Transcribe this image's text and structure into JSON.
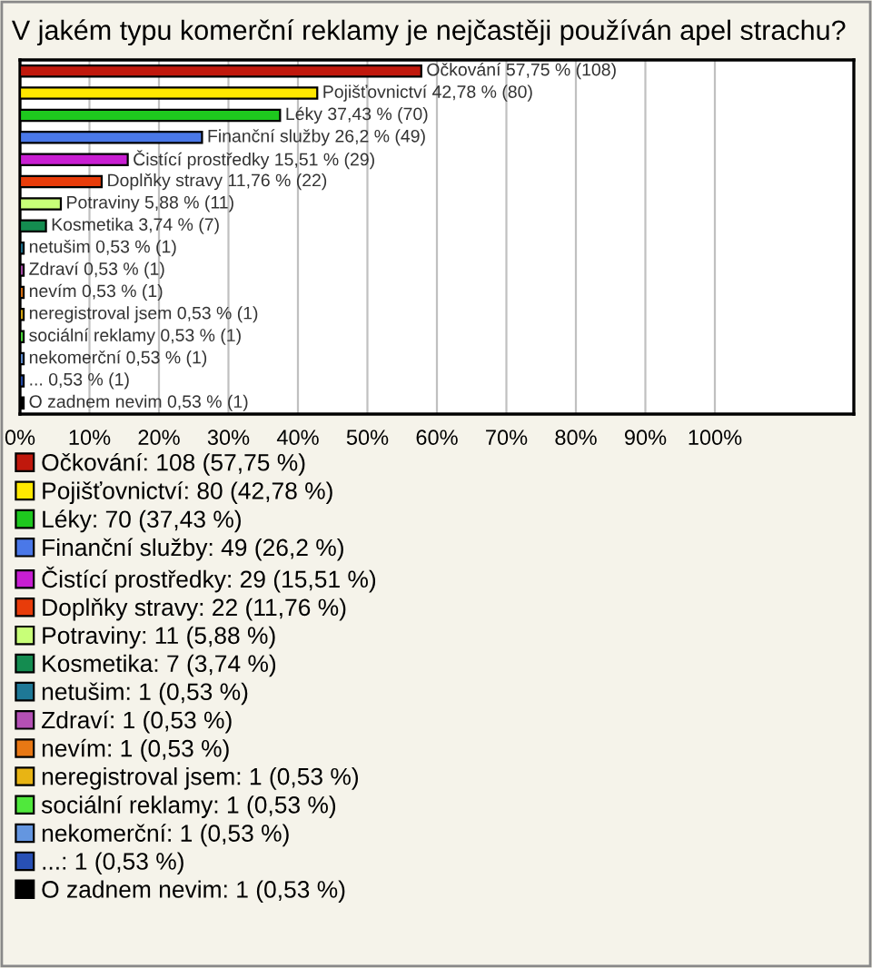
{
  "chart_data": {
    "type": "bar",
    "orientation": "horizontal",
    "title": "V jakém typu komerční reklamy je nejčastěji používán apel strachu?",
    "categories": [
      null,
      null,
      null,
      null,
      null,
      null,
      null,
      null,
      null,
      null,
      null,
      null,
      null,
      null,
      null,
      null
    ],
    "series": [
      {
        "name": "Očkování: 108 (57,75 %)",
        "color": "#c0180c",
        "values": [
          57.75,
          null,
          null,
          null,
          null,
          null,
          null,
          null,
          null,
          null,
          null,
          null,
          null,
          null,
          null,
          null
        ],
        "value_labels": [
          "Očkování 57,75 % (108)",
          null,
          null,
          null,
          null,
          null,
          null,
          null,
          null,
          null,
          null,
          null,
          null,
          null,
          null,
          null
        ]
      },
      {
        "name": "Pojišťovnictví: 80 (42,78 %)",
        "color": "#ffe800",
        "values": [
          null,
          42.78,
          null,
          null,
          null,
          null,
          null,
          null,
          null,
          null,
          null,
          null,
          null,
          null,
          null,
          null
        ],
        "value_labels": [
          null,
          "Pojišťovnictví 42,78 % (80)",
          null,
          null,
          null,
          null,
          null,
          null,
          null,
          null,
          null,
          null,
          null,
          null,
          null,
          null
        ]
      },
      {
        "name": "Léky: 70 (37,43 %)",
        "color": "#1ec81e",
        "values": [
          null,
          null,
          37.43,
          null,
          null,
          null,
          null,
          null,
          null,
          null,
          null,
          null,
          null,
          null,
          null,
          null
        ],
        "value_labels": [
          null,
          null,
          "Léky 37,43 % (70)",
          null,
          null,
          null,
          null,
          null,
          null,
          null,
          null,
          null,
          null,
          null,
          null,
          null
        ]
      },
      {
        "name": "Finanční služby: 49 (26,2 %)",
        "color": "#4a78e8",
        "values": [
          null,
          null,
          null,
          26.2,
          null,
          null,
          null,
          null,
          null,
          null,
          null,
          null,
          null,
          null,
          null,
          null
        ],
        "value_labels": [
          null,
          null,
          null,
          "Finanční služby 26,2 % (49)",
          null,
          null,
          null,
          null,
          null,
          null,
          null,
          null,
          null,
          null,
          null,
          null
        ]
      },
      {
        "name": "Čistící prostředky: 29 (15,51 %)",
        "color": "#c81ed2",
        "values": [
          null,
          null,
          null,
          null,
          15.51,
          null,
          null,
          null,
          null,
          null,
          null,
          null,
          null,
          null,
          null,
          null
        ],
        "value_labels": [
          null,
          null,
          null,
          null,
          "Čistící prostředky 15,51 % (29)",
          null,
          null,
          null,
          null,
          null,
          null,
          null,
          null,
          null,
          null,
          null
        ]
      },
      {
        "name": "Doplňky stravy: 22 (11,76 %)",
        "color": "#e83c0a",
        "values": [
          null,
          null,
          null,
          null,
          null,
          11.76,
          null,
          null,
          null,
          null,
          null,
          null,
          null,
          null,
          null,
          null
        ],
        "value_labels": [
          null,
          null,
          null,
          null,
          null,
          "Doplňky stravy 11,76 % (22)",
          null,
          null,
          null,
          null,
          null,
          null,
          null,
          null,
          null,
          null
        ]
      },
      {
        "name": "Potraviny: 11 (5,88 %)",
        "color": "#c8ff78",
        "values": [
          null,
          null,
          null,
          null,
          null,
          null,
          5.88,
          null,
          null,
          null,
          null,
          null,
          null,
          null,
          null,
          null
        ],
        "value_labels": [
          null,
          null,
          null,
          null,
          null,
          null,
          "Potraviny 5,88 % (11)",
          null,
          null,
          null,
          null,
          null,
          null,
          null,
          null,
          null
        ]
      },
      {
        "name": "Kosmetika: 7 (3,74 %)",
        "color": "#148c50",
        "values": [
          null,
          null,
          null,
          null,
          null,
          null,
          null,
          3.74,
          null,
          null,
          null,
          null,
          null,
          null,
          null,
          null
        ],
        "value_labels": [
          null,
          null,
          null,
          null,
          null,
          null,
          null,
          "Kosmetika 3,74 % (7)",
          null,
          null,
          null,
          null,
          null,
          null,
          null,
          null
        ]
      },
      {
        "name": "netušim: 1 (0,53 %)",
        "color": "#1e7896",
        "values": [
          null,
          null,
          null,
          null,
          null,
          null,
          null,
          null,
          0.53,
          null,
          null,
          null,
          null,
          null,
          null,
          null
        ],
        "value_labels": [
          null,
          null,
          null,
          null,
          null,
          null,
          null,
          null,
          "netušim 0,53 % (1)",
          null,
          null,
          null,
          null,
          null,
          null,
          null
        ]
      },
      {
        "name": "Zdraví: 1 (0,53 %)",
        "color": "#b450b4",
        "values": [
          null,
          null,
          null,
          null,
          null,
          null,
          null,
          null,
          null,
          0.53,
          null,
          null,
          null,
          null,
          null,
          null
        ],
        "value_labels": [
          null,
          null,
          null,
          null,
          null,
          null,
          null,
          null,
          null,
          "Zdraví 0,53 % (1)",
          null,
          null,
          null,
          null,
          null,
          null
        ]
      },
      {
        "name": "nevím: 1 (0,53 %)",
        "color": "#e87814",
        "values": [
          null,
          null,
          null,
          null,
          null,
          null,
          null,
          null,
          null,
          null,
          0.53,
          null,
          null,
          null,
          null,
          null
        ],
        "value_labels": [
          null,
          null,
          null,
          null,
          null,
          null,
          null,
          null,
          null,
          null,
          "nevím 0,53 % (1)",
          null,
          null,
          null,
          null,
          null
        ]
      },
      {
        "name": "neregistroval jsem: 1 (0,53 %)",
        "color": "#e8b414",
        "values": [
          null,
          null,
          null,
          null,
          null,
          null,
          null,
          null,
          null,
          null,
          null,
          0.53,
          null,
          null,
          null,
          null
        ],
        "value_labels": [
          null,
          null,
          null,
          null,
          null,
          null,
          null,
          null,
          null,
          null,
          null,
          "neregistroval jsem 0,53 % (1)",
          null,
          null,
          null,
          null
        ]
      },
      {
        "name": "sociální reklamy: 1 (0,53 %)",
        "color": "#50e83c",
        "values": [
          null,
          null,
          null,
          null,
          null,
          null,
          null,
          null,
          null,
          null,
          null,
          null,
          0.53,
          null,
          null,
          null
        ],
        "value_labels": [
          null,
          null,
          null,
          null,
          null,
          null,
          null,
          null,
          null,
          null,
          null,
          null,
          "sociální reklamy 0,53 % (1)",
          null,
          null,
          null
        ]
      },
      {
        "name": "nekomerční: 1 (0,53 %)",
        "color": "#6496e0",
        "values": [
          null,
          null,
          null,
          null,
          null,
          null,
          null,
          null,
          null,
          null,
          null,
          null,
          null,
          0.53,
          null,
          null
        ],
        "value_labels": [
          null,
          null,
          null,
          null,
          null,
          null,
          null,
          null,
          null,
          null,
          null,
          null,
          null,
          "nekomerční 0,53 % (1)",
          null,
          null
        ]
      },
      {
        "name": "...: 1 (0,53 %)",
        "color": "#2850b4",
        "values": [
          null,
          null,
          null,
          null,
          null,
          null,
          null,
          null,
          null,
          null,
          null,
          null,
          null,
          null,
          0.53,
          null
        ],
        "value_labels": [
          null,
          null,
          null,
          null,
          null,
          null,
          null,
          null,
          null,
          null,
          null,
          null,
          null,
          null,
          "... 0,53 % (1)",
          null
        ]
      },
      {
        "name": "O zadnem nevim: 1 (0,53 %)",
        "color": "#000000",
        "values": [
          null,
          null,
          null,
          null,
          null,
          null,
          null,
          null,
          null,
          null,
          null,
          null,
          null,
          null,
          null,
          0.53
        ],
        "value_labels": [
          null,
          null,
          null,
          null,
          null,
          null,
          null,
          null,
          null,
          null,
          null,
          null,
          null,
          null,
          null,
          "O zadnem nevim 0,53 % (1)"
        ]
      }
    ],
    "xlim": [
      0,
      120
    ],
    "xticks": [
      {
        "value": 0,
        "label": "0%"
      },
      {
        "value": 10,
        "label": "10%"
      },
      {
        "value": 20,
        "label": "20%"
      },
      {
        "value": 30,
        "label": "30%"
      },
      {
        "value": 40,
        "label": "40%"
      },
      {
        "value": 50,
        "label": "50%"
      },
      {
        "value": 60,
        "label": "60%"
      },
      {
        "value": 70,
        "label": "70%"
      },
      {
        "value": 80,
        "label": "80%"
      },
      {
        "value": 90,
        "label": "90%"
      },
      {
        "value": 100,
        "label": "100%"
      }
    ],
    "grid": "x",
    "legend": "bottom",
    "tick_labels": "x"
  }
}
